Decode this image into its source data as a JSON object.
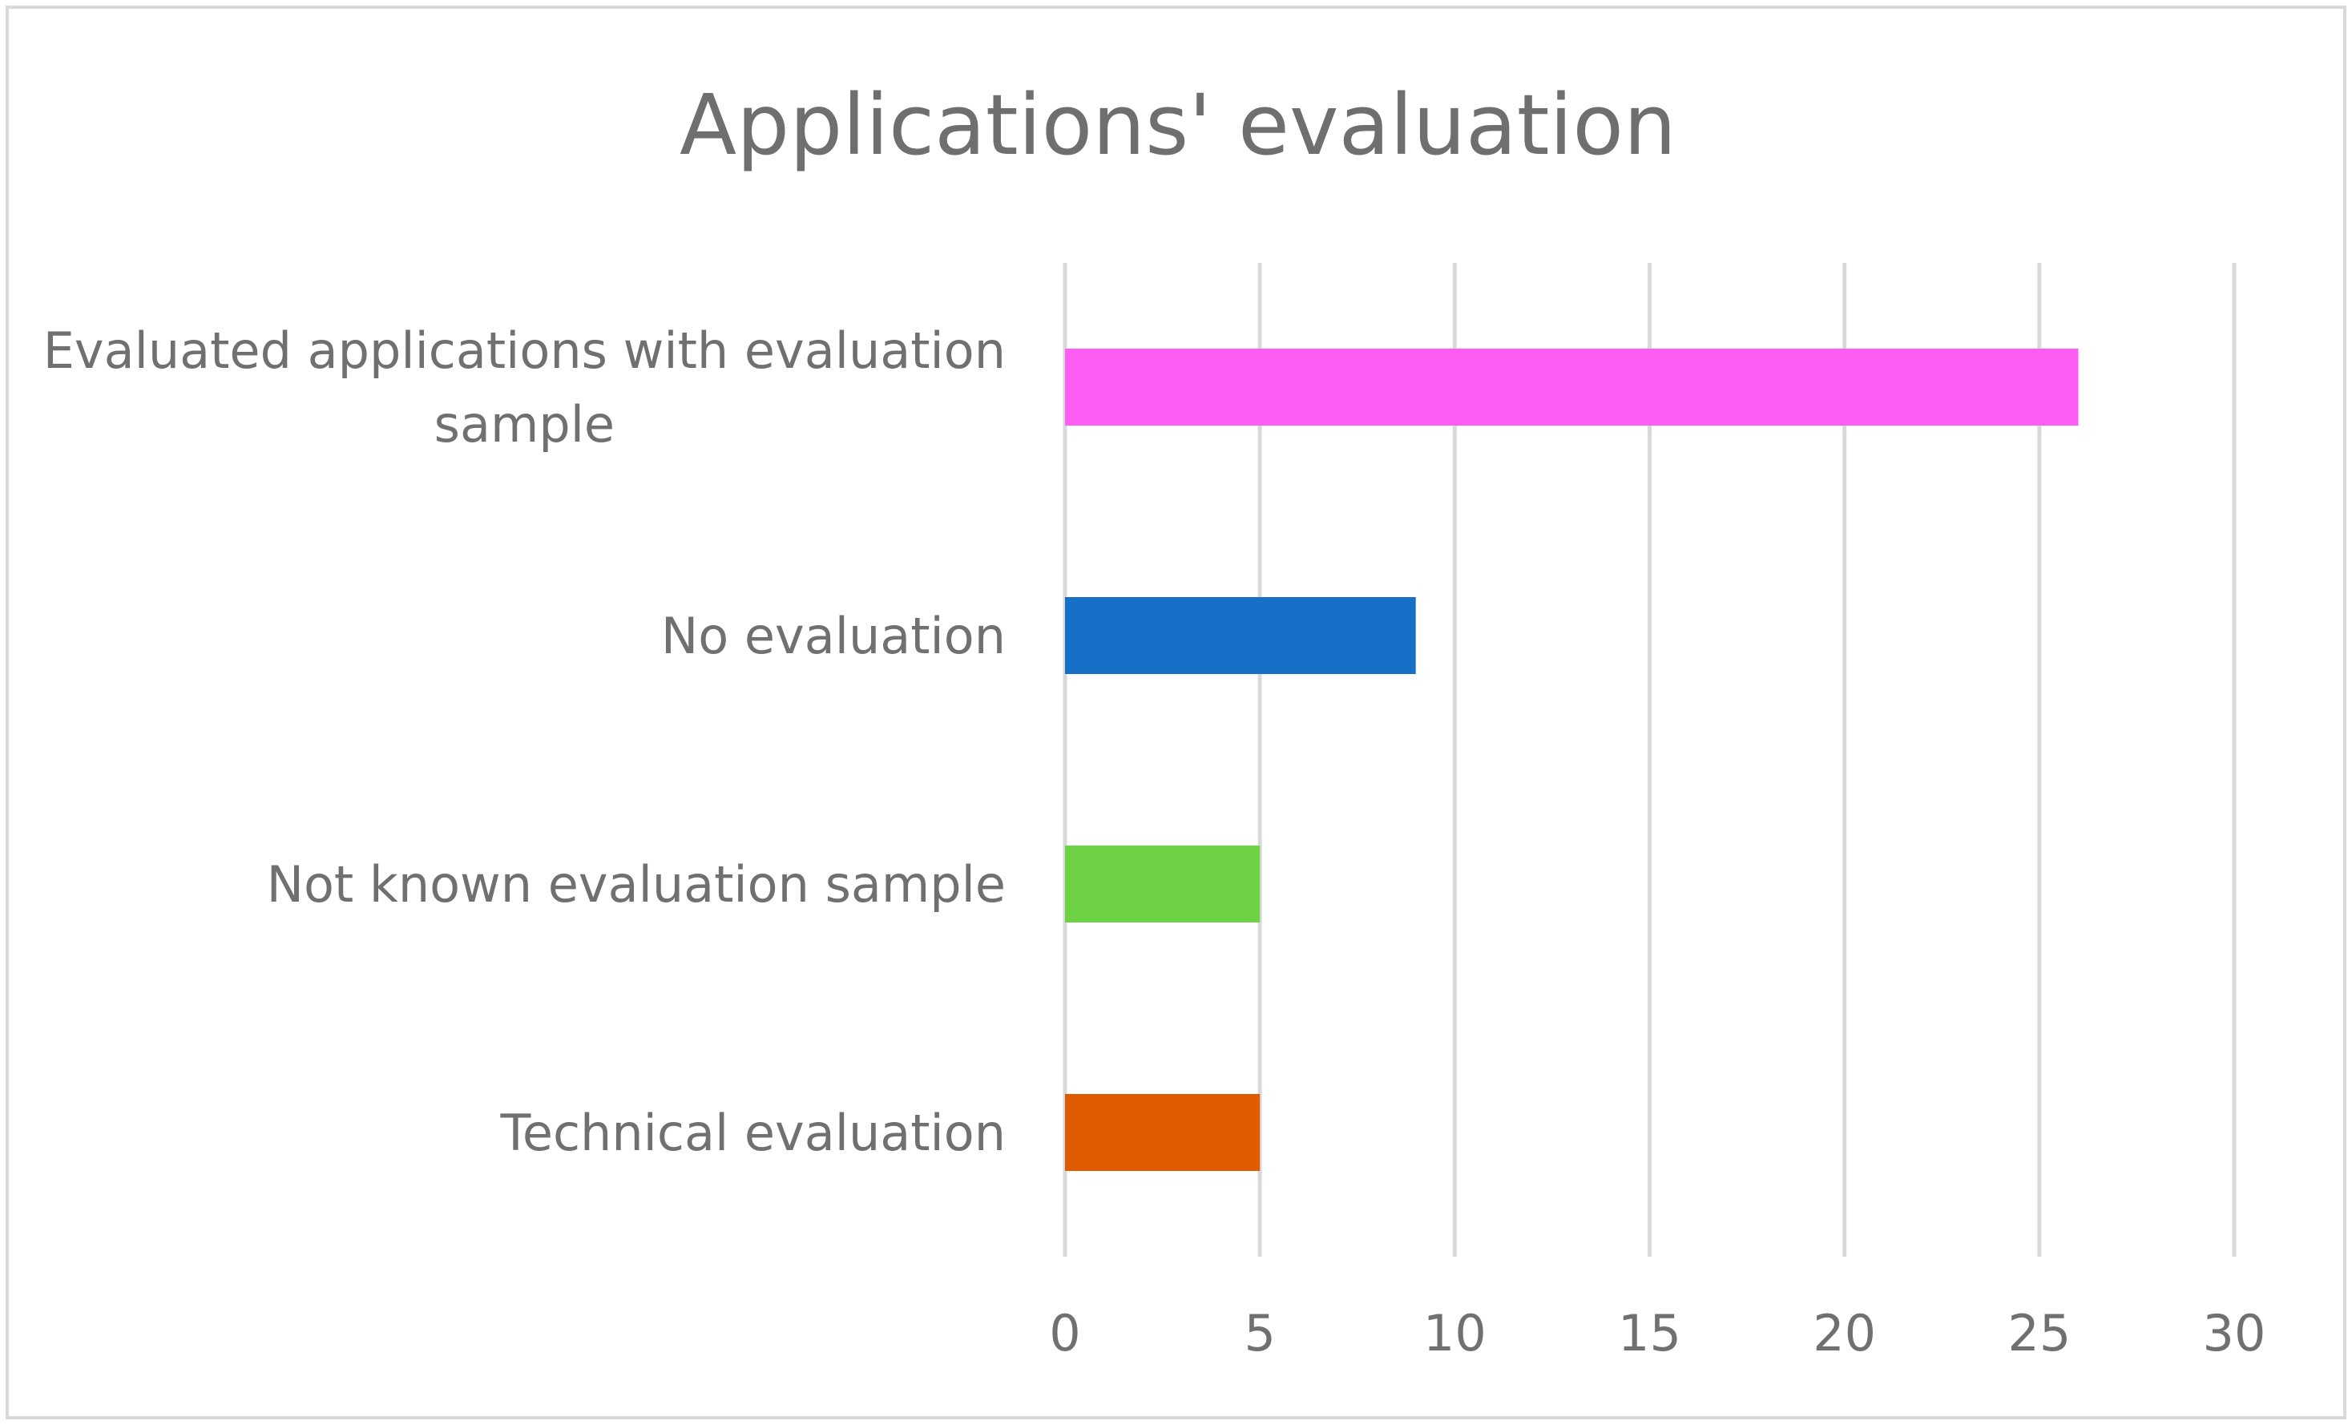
{
  "chart_data": {
    "type": "bar",
    "orientation": "horizontal",
    "title": "Applications' evaluation",
    "xlabel": "",
    "ylabel": "",
    "xlim": [
      0,
      30
    ],
    "ticks": [
      0,
      5,
      10,
      15,
      20,
      25,
      30
    ],
    "tick_labels": [
      "0",
      "5",
      "10",
      "15",
      "20",
      "25",
      "30"
    ],
    "grid": true,
    "legend": "none",
    "categories": [
      {
        "lines": [
          "Evaluated applications with evaluation",
          "sample"
        ],
        "value": 26,
        "color": "#ff5cf4"
      },
      {
        "lines": [
          "No evaluation"
        ],
        "value": 9,
        "color": "#1670c8"
      },
      {
        "lines": [
          "Not known evaluation sample"
        ],
        "value": 5,
        "color": "#6dd244"
      },
      {
        "lines": [
          "Technical evaluation"
        ],
        "value": 5,
        "color": "#e05a00"
      }
    ]
  }
}
